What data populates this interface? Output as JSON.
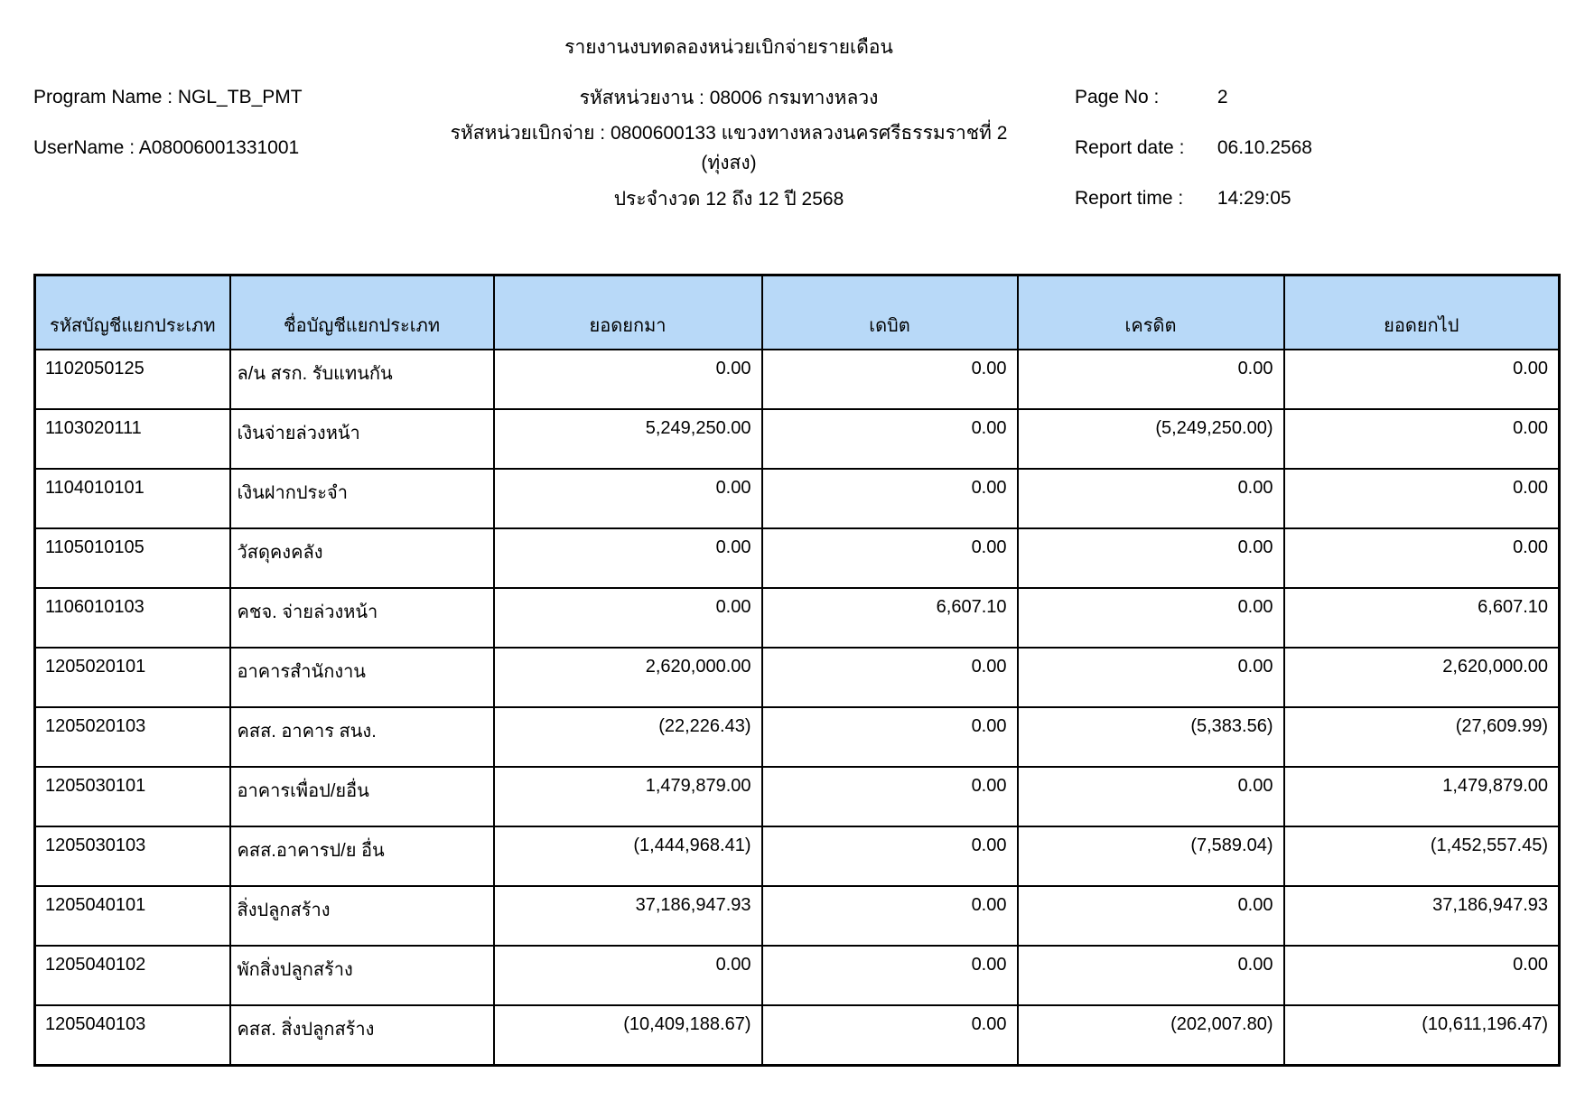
{
  "report": {
    "title": "รายงานงบทดลองหน่วยเบิกจ่ายรายเดือน",
    "program_name_label": "Program Name : NGL_TB_PMT",
    "username_label": "UserName : A08006001331001",
    "agency_line": "รหัสหน่วยงาน : 08006 กรมทางหลวง",
    "disburse_unit_line": "รหัสหน่วยเบิกจ่าย : 0800600133 แขวงทางหลวงนครศรีธรรมราชที่ 2 (ทุ่งสง)",
    "period_line": "ประจำงวด 12 ถึง 12 ปี 2568",
    "page_no_label": "Page No :",
    "page_no_value": "2",
    "report_date_label": "Report date :",
    "report_date_value": "06.10.2568",
    "report_time_label": "Report time :",
    "report_time_value": "14:29:05"
  },
  "table": {
    "header_bg": "#b8d9f8",
    "columns": [
      "รหัสบัญชีแยกประเภท",
      "ชื่อบัญชีแยกประเภท",
      "ยอดยกมา",
      "เดบิต",
      "เครดิต",
      "ยอดยกไป"
    ],
    "rows": [
      {
        "code": "1102050125",
        "name": "ล/น สรก. รับแทนกัน",
        "opening": "0.00",
        "debit": "0.00",
        "credit": "0.00",
        "closing": "0.00"
      },
      {
        "code": "1103020111",
        "name": "เงินจ่ายล่วงหน้า",
        "opening": "5,249,250.00",
        "debit": "0.00",
        "credit": "(5,249,250.00)",
        "closing": "0.00"
      },
      {
        "code": "1104010101",
        "name": "เงินฝากประจำ",
        "opening": "0.00",
        "debit": "0.00",
        "credit": "0.00",
        "closing": "0.00"
      },
      {
        "code": "1105010105",
        "name": "วัสดุคงคลัง",
        "opening": "0.00",
        "debit": "0.00",
        "credit": "0.00",
        "closing": "0.00"
      },
      {
        "code": "1106010103",
        "name": "คชจ. จ่ายล่วงหน้า",
        "opening": "0.00",
        "debit": "6,607.10",
        "credit": "0.00",
        "closing": "6,607.10"
      },
      {
        "code": "1205020101",
        "name": "อาคารสำนักงาน",
        "opening": "2,620,000.00",
        "debit": "0.00",
        "credit": "0.00",
        "closing": "2,620,000.00"
      },
      {
        "code": "1205020103",
        "name": "คสส. อาคาร สนง.",
        "opening": "(22,226.43)",
        "debit": "0.00",
        "credit": "(5,383.56)",
        "closing": "(27,609.99)"
      },
      {
        "code": "1205030101",
        "name": "อาคารเพื่อป/ยอื่น",
        "opening": "1,479,879.00",
        "debit": "0.00",
        "credit": "0.00",
        "closing": "1,479,879.00"
      },
      {
        "code": "1205030103",
        "name": "คสส.อาคารป/ย อื่น",
        "opening": "(1,444,968.41)",
        "debit": "0.00",
        "credit": "(7,589.04)",
        "closing": "(1,452,557.45)"
      },
      {
        "code": "1205040101",
        "name": "สิ่งปลูกสร้าง",
        "opening": "37,186,947.93",
        "debit": "0.00",
        "credit": "0.00",
        "closing": "37,186,947.93"
      },
      {
        "code": "1205040102",
        "name": "พักสิ่งปลูกสร้าง",
        "opening": "0.00",
        "debit": "0.00",
        "credit": "0.00",
        "closing": "0.00"
      },
      {
        "code": "1205040103",
        "name": "คสส. สิ่งปลูกสร้าง",
        "opening": "(10,409,188.67)",
        "debit": "0.00",
        "credit": "(202,007.80)",
        "closing": "(10,611,196.47)"
      }
    ]
  }
}
